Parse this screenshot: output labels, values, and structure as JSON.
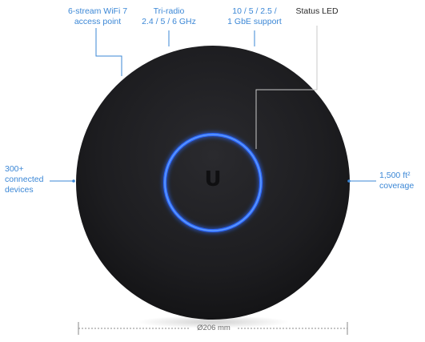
{
  "callouts": {
    "streams": {
      "line1": "6-stream WiFi 7",
      "line2": "access point"
    },
    "radio": {
      "line1": "Tri-radio",
      "line2": "2.4 / 5 / 6 GHz"
    },
    "ethernet": {
      "line1": "10 / 5 / 2.5 /",
      "line2": "1 GbE support"
    },
    "status": {
      "line1": "Status LED"
    },
    "clients": {
      "line1": "300+",
      "line2": "connected",
      "line3": "devices"
    },
    "coverage": {
      "line1": "1,500 ft²",
      "line2": "coverage"
    }
  },
  "dimension": {
    "label": "Ø206 mm"
  },
  "device": {
    "logo": "U"
  },
  "colors": {
    "accent": "#3b87d6",
    "device_body": "#1f1f22",
    "led_ring": "#2f6bff"
  }
}
